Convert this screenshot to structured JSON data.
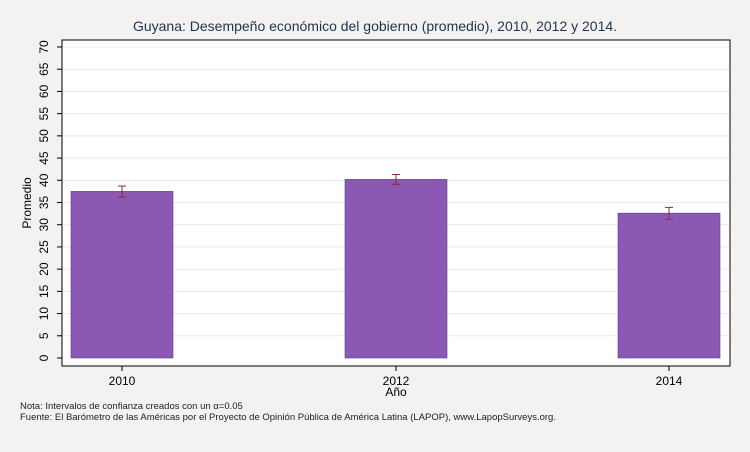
{
  "chart_data": {
    "type": "bar",
    "title": "Guyana: Desempeño económico del gobierno (promedio), 2010, 2012 y 2014.",
    "xlabel": "Año",
    "ylabel": "Promedio",
    "categories": [
      "2010",
      "2012",
      "2014"
    ],
    "values": [
      37.5,
      40.2,
      32.6
    ],
    "error_low": [
      36.2,
      39.1,
      31.2
    ],
    "error_high": [
      38.7,
      41.3,
      33.9
    ],
    "ylim": [
      0,
      70
    ],
    "yticks": [
      "0",
      "5",
      "10",
      "15",
      "20",
      "25",
      "30",
      "35",
      "40",
      "45",
      "50",
      "55",
      "60",
      "65",
      "70"
    ],
    "grid": true,
    "bar_color": "#8b59b3",
    "error_color": "#8b2a3a"
  },
  "notes": {
    "nota": "Nota: Intervalos de confianza creados con un α=0.05",
    "fuente": "Fuente: El Barómetro de las Américas por el Proyecto de Opinión Pública de América Latina (LAPOP), www.LapopSurveys.org."
  }
}
